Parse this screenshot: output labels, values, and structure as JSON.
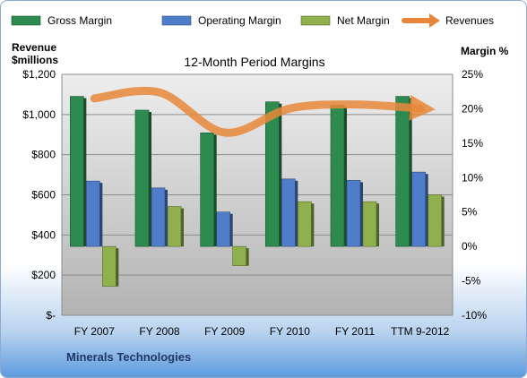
{
  "chart_data": {
    "type": "bar",
    "title": "12-Month Period Margins",
    "footer": "Minerals Technologies",
    "categories": [
      "FY 2007",
      "FY 2008",
      "FY 2009",
      "FY 2010",
      "FY 2011",
      "TTM 9-2012"
    ],
    "left_axis": {
      "label_line1": "Revenue",
      "label_line2": "$millions",
      "range": [
        0,
        1200
      ],
      "ticks": [
        "$-",
        "$200",
        "$400",
        "$600",
        "$800",
        "$1,000",
        "$1,200"
      ]
    },
    "right_axis": {
      "label": "Margin %",
      "range": [
        -10,
        25
      ],
      "ticks": [
        "-10%",
        "-5%",
        "0%",
        "5%",
        "10%",
        "15%",
        "20%",
        "25%"
      ]
    },
    "series": [
      {
        "name": "Gross Margin",
        "axis": "right",
        "color": "#2e8b4f",
        "values": [
          21.8,
          19.8,
          16.5,
          21.0,
          20.5,
          21.8
        ]
      },
      {
        "name": "Operating Margin",
        "axis": "right",
        "color": "#4f7dc9",
        "values": [
          9.5,
          8.5,
          5.0,
          9.8,
          9.6,
          10.8
        ]
      },
      {
        "name": "Net Margin",
        "axis": "right",
        "color": "#8fb04c",
        "values": [
          -5.8,
          5.8,
          -2.8,
          6.5,
          6.5,
          7.5
        ]
      },
      {
        "name": "Revenues",
        "axis": "left",
        "type": "line",
        "color": "#e8873a",
        "values": [
          1080,
          1110,
          910,
          1030,
          1050,
          1030
        ]
      }
    ],
    "grid": true,
    "legend": "top"
  }
}
